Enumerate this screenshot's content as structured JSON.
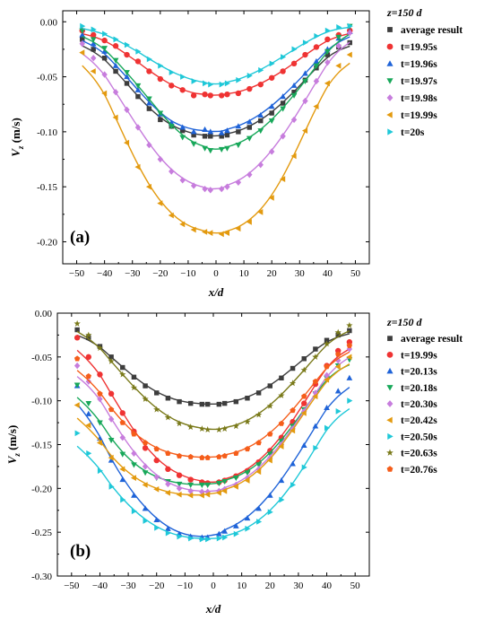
{
  "chart_data": [
    {
      "type": "scatter",
      "panel_label": "(a)",
      "xlabel": "x/d",
      "ylabel": "V_z (m/s)",
      "xlim": [
        -55,
        55
      ],
      "ylim": [
        -0.22,
        0.01
      ],
      "xticks": [
        -50,
        -40,
        -30,
        -20,
        -10,
        0,
        10,
        20,
        30,
        40,
        50
      ],
      "xtick_labels": [
        "−50",
        "−40",
        "−30",
        "−20",
        "−10",
        "0",
        "10",
        "20",
        "30",
        "40",
        "50"
      ],
      "yticks": [
        0.0,
        -0.05,
        -0.1,
        -0.15,
        -0.2
      ],
      "ytick_labels": [
        "0.00",
        "-0.05",
        "-0.10",
        "-0.15",
        "-0.20"
      ],
      "legend_title": "z=150 d",
      "legend_position": "right-outside",
      "grid": false,
      "x": [
        -48,
        -44,
        -40,
        -36,
        -32,
        -28,
        -24,
        -20,
        -16,
        -12,
        -8,
        -4,
        -2,
        2,
        4,
        8,
        12,
        16,
        20,
        24,
        28,
        32,
        36,
        40,
        44,
        48
      ],
      "series": [
        {
          "name": "average result",
          "marker": "square",
          "color": "#3d3d3d",
          "values": [
            -0.016,
            -0.025,
            -0.033,
            -0.045,
            -0.056,
            -0.068,
            -0.079,
            -0.089,
            -0.095,
            -0.099,
            -0.103,
            -0.104,
            -0.104,
            -0.104,
            -0.103,
            -0.1,
            -0.096,
            -0.09,
            -0.083,
            -0.074,
            -0.064,
            -0.053,
            -0.042,
            -0.03,
            -0.023,
            -0.019
          ]
        },
        {
          "name": "t=19.95s",
          "marker": "circle",
          "color": "#ef3333",
          "values": [
            -0.008,
            -0.012,
            -0.017,
            -0.022,
            -0.03,
            -0.036,
            -0.045,
            -0.052,
            -0.058,
            -0.062,
            -0.067,
            -0.066,
            -0.067,
            -0.067,
            -0.066,
            -0.065,
            -0.061,
            -0.057,
            -0.051,
            -0.045,
            -0.038,
            -0.03,
            -0.023,
            -0.016,
            -0.012,
            -0.008
          ]
        },
        {
          "name": "t=19.96s",
          "marker": "triangle-up",
          "color": "#1f63d8",
          "values": [
            -0.012,
            -0.02,
            -0.027,
            -0.04,
            -0.05,
            -0.062,
            -0.074,
            -0.084,
            -0.092,
            -0.096,
            -0.1,
            -0.098,
            -0.1,
            -0.101,
            -0.099,
            -0.095,
            -0.091,
            -0.085,
            -0.077,
            -0.068,
            -0.058,
            -0.047,
            -0.036,
            -0.025,
            -0.015,
            -0.009
          ]
        },
        {
          "name": "t=19.97s",
          "marker": "triangle-down",
          "color": "#18a85a",
          "values": [
            -0.008,
            -0.016,
            -0.024,
            -0.035,
            -0.046,
            -0.058,
            -0.07,
            -0.083,
            -0.095,
            -0.105,
            -0.111,
            -0.115,
            -0.117,
            -0.116,
            -0.115,
            -0.112,
            -0.106,
            -0.099,
            -0.09,
            -0.079,
            -0.067,
            -0.054,
            -0.04,
            -0.027,
            -0.014,
            -0.004
          ]
        },
        {
          "name": "t=19.98s",
          "marker": "diamond",
          "color": "#c77ddd",
          "values": [
            -0.02,
            -0.033,
            -0.048,
            -0.064,
            -0.08,
            -0.096,
            -0.112,
            -0.125,
            -0.136,
            -0.144,
            -0.149,
            -0.152,
            -0.153,
            -0.152,
            -0.15,
            -0.146,
            -0.139,
            -0.13,
            -0.118,
            -0.104,
            -0.089,
            -0.072,
            -0.054,
            -0.037,
            -0.022,
            -0.01
          ]
        },
        {
          "name": "t=19.99s",
          "marker": "triangle-left",
          "color": "#e39a0f",
          "values": [
            -0.028,
            -0.045,
            -0.065,
            -0.087,
            -0.11,
            -0.132,
            -0.15,
            -0.165,
            -0.176,
            -0.184,
            -0.189,
            -0.191,
            -0.192,
            -0.193,
            -0.192,
            -0.188,
            -0.182,
            -0.173,
            -0.16,
            -0.143,
            -0.122,
            -0.099,
            -0.077,
            -0.056,
            -0.04,
            -0.03
          ]
        },
        {
          "name": "t=20s",
          "marker": "triangle-right",
          "color": "#1fc8d8",
          "values": [
            -0.004,
            -0.007,
            -0.011,
            -0.016,
            -0.021,
            -0.027,
            -0.034,
            -0.04,
            -0.046,
            -0.05,
            -0.054,
            -0.056,
            -0.057,
            -0.057,
            -0.056,
            -0.053,
            -0.049,
            -0.044,
            -0.038,
            -0.032,
            -0.025,
            -0.019,
            -0.013,
            -0.008,
            -0.005,
            -0.004
          ]
        }
      ]
    },
    {
      "type": "scatter",
      "panel_label": "(b)",
      "xlabel": "x/d",
      "ylabel": "V_z (m/s)",
      "xlim": [
        -55,
        55
      ],
      "ylim": [
        -0.3,
        0.0
      ],
      "xticks": [
        -50,
        -40,
        -30,
        -20,
        -10,
        0,
        10,
        20,
        30,
        40,
        50
      ],
      "xtick_labels": [
        "−50",
        "−40",
        "−30",
        "−20",
        "−10",
        "0",
        "10",
        "20",
        "30",
        "40",
        "50"
      ],
      "yticks": [
        0.0,
        -0.05,
        -0.1,
        -0.15,
        -0.2,
        -0.25,
        -0.3
      ],
      "ytick_labels": [
        "0.00",
        "-0.05",
        "-0.10",
        "-0.15",
        "-0.20",
        "-0.25",
        "-0.30"
      ],
      "legend_title": "z=150 d",
      "legend_position": "right-outside",
      "grid": false,
      "x": [
        -48,
        -44,
        -40,
        -36,
        -32,
        -28,
        -24,
        -20,
        -16,
        -12,
        -8,
        -4,
        -2,
        2,
        4,
        8,
        12,
        16,
        20,
        24,
        28,
        32,
        36,
        40,
        44,
        48
      ],
      "series": [
        {
          "name": "average result",
          "marker": "square",
          "color": "#3d3d3d",
          "values": [
            -0.019,
            -0.028,
            -0.038,
            -0.05,
            -0.062,
            -0.073,
            -0.083,
            -0.091,
            -0.097,
            -0.101,
            -0.103,
            -0.104,
            -0.104,
            -0.104,
            -0.103,
            -0.101,
            -0.097,
            -0.091,
            -0.083,
            -0.074,
            -0.063,
            -0.052,
            -0.041,
            -0.031,
            -0.025,
            -0.02
          ]
        },
        {
          "name": "t=19.99s",
          "marker": "circle",
          "color": "#ef3333",
          "values": [
            -0.028,
            -0.05,
            -0.07,
            -0.092,
            -0.114,
            -0.135,
            -0.154,
            -0.168,
            -0.178,
            -0.185,
            -0.19,
            -0.193,
            -0.194,
            -0.193,
            -0.191,
            -0.186,
            -0.18,
            -0.17,
            -0.157,
            -0.142,
            -0.124,
            -0.103,
            -0.081,
            -0.06,
            -0.043,
            -0.033
          ]
        },
        {
          "name": "t=20.13s",
          "marker": "triangle-up",
          "color": "#1f63d8",
          "values": [
            -0.083,
            -0.115,
            -0.143,
            -0.168,
            -0.19,
            -0.208,
            -0.223,
            -0.236,
            -0.246,
            -0.252,
            -0.255,
            -0.256,
            -0.256,
            -0.252,
            -0.249,
            -0.243,
            -0.234,
            -0.223,
            -0.208,
            -0.191,
            -0.172,
            -0.151,
            -0.129,
            -0.108,
            -0.089,
            -0.074
          ]
        },
        {
          "name": "t=20.18s",
          "marker": "triangle-down",
          "color": "#18a85a",
          "values": [
            -0.082,
            -0.103,
            -0.125,
            -0.145,
            -0.161,
            -0.173,
            -0.182,
            -0.188,
            -0.192,
            -0.195,
            -0.196,
            -0.196,
            -0.196,
            -0.194,
            -0.192,
            -0.188,
            -0.182,
            -0.173,
            -0.161,
            -0.146,
            -0.129,
            -0.11,
            -0.092,
            -0.074,
            -0.06,
            -0.053
          ]
        },
        {
          "name": "t=20.30s",
          "marker": "diamond",
          "color": "#c77ddd",
          "values": [
            -0.06,
            -0.078,
            -0.098,
            -0.121,
            -0.142,
            -0.16,
            -0.175,
            -0.187,
            -0.195,
            -0.2,
            -0.203,
            -0.204,
            -0.204,
            -0.203,
            -0.201,
            -0.196,
            -0.188,
            -0.178,
            -0.165,
            -0.15,
            -0.132,
            -0.112,
            -0.091,
            -0.071,
            -0.054,
            -0.041
          ]
        },
        {
          "name": "t=20.42s",
          "marker": "triangle-left",
          "color": "#e39a0f",
          "values": [
            -0.105,
            -0.128,
            -0.148,
            -0.165,
            -0.178,
            -0.188,
            -0.196,
            -0.201,
            -0.205,
            -0.207,
            -0.208,
            -0.208,
            -0.207,
            -0.205,
            -0.203,
            -0.198,
            -0.191,
            -0.181,
            -0.168,
            -0.152,
            -0.134,
            -0.114,
            -0.095,
            -0.076,
            -0.061,
            -0.05
          ]
        },
        {
          "name": "t=20.50s",
          "marker": "triangle-right",
          "color": "#1fc8d8",
          "values": [
            -0.137,
            -0.16,
            -0.18,
            -0.198,
            -0.213,
            -0.226,
            -0.237,
            -0.245,
            -0.251,
            -0.255,
            -0.257,
            -0.258,
            -0.258,
            -0.257,
            -0.256,
            -0.252,
            -0.246,
            -0.238,
            -0.227,
            -0.213,
            -0.196,
            -0.176,
            -0.154,
            -0.131,
            -0.112,
            -0.1
          ]
        },
        {
          "name": "t=20.63s",
          "marker": "star",
          "color": "#7a7a1a",
          "values": [
            -0.012,
            -0.025,
            -0.04,
            -0.055,
            -0.07,
            -0.085,
            -0.098,
            -0.11,
            -0.119,
            -0.126,
            -0.13,
            -0.132,
            -0.133,
            -0.133,
            -0.132,
            -0.129,
            -0.124,
            -0.116,
            -0.106,
            -0.094,
            -0.08,
            -0.065,
            -0.05,
            -0.035,
            -0.022,
            -0.014
          ]
        },
        {
          "name": "t=20.76s",
          "marker": "pentagon",
          "color": "#f55d1a",
          "values": [
            -0.052,
            -0.072,
            -0.092,
            -0.11,
            -0.125,
            -0.138,
            -0.148,
            -0.155,
            -0.16,
            -0.163,
            -0.164,
            -0.165,
            -0.165,
            -0.164,
            -0.163,
            -0.16,
            -0.155,
            -0.148,
            -0.138,
            -0.126,
            -0.111,
            -0.095,
            -0.078,
            -0.061,
            -0.047,
            -0.037
          ]
        }
      ]
    }
  ]
}
